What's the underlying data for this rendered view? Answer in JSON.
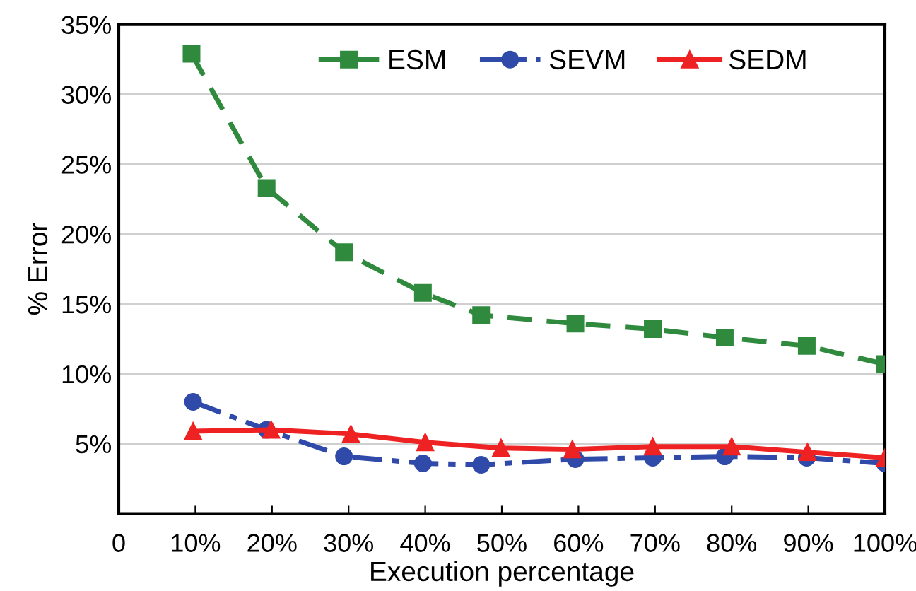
{
  "chart_data": {
    "type": "line",
    "xlabel": "Execution percentage",
    "ylabel": "% Error",
    "xlim": [
      0,
      100
    ],
    "xticks": [
      {
        "value": 0,
        "label": "0"
      },
      {
        "value": 10,
        "label": "10%"
      },
      {
        "value": 20,
        "label": "20%"
      },
      {
        "value": 30,
        "label": "30%"
      },
      {
        "value": 40,
        "label": "40%"
      },
      {
        "value": 50,
        "label": "50%"
      },
      {
        "value": 60,
        "label": "60%"
      },
      {
        "value": 70,
        "label": "70%"
      },
      {
        "value": 80,
        "label": "80%"
      },
      {
        "value": 90,
        "label": "90%"
      },
      {
        "value": 100,
        "label": "100%"
      }
    ],
    "ylim": [
      0,
      35
    ],
    "yticks": [
      {
        "value": 5,
        "label": "5%"
      },
      {
        "value": 10,
        "label": "10%"
      },
      {
        "value": 15,
        "label": "15%"
      },
      {
        "value": 20,
        "label": "20%"
      },
      {
        "value": 25,
        "label": "25%"
      },
      {
        "value": 30,
        "label": "30%"
      },
      {
        "value": 35,
        "label": "35%"
      }
    ],
    "grid": "y",
    "legend": "top",
    "series": [
      {
        "name": "ESM",
        "color": "#2f8a3e",
        "marker": "square",
        "line_style": "dashed",
        "x": [
          9.5,
          19.3,
          29.4,
          39.7,
          47.3,
          59.6,
          69.7,
          79.1,
          89.8,
          100
        ],
        "values": [
          32.9,
          23.3,
          18.7,
          15.8,
          14.2,
          13.6,
          13.2,
          12.6,
          12.0,
          10.7
        ]
      },
      {
        "name": "SEVM",
        "color": "#2f4aa8",
        "marker": "circle",
        "line_style": "dashdot",
        "x": [
          9.7,
          19.3,
          29.4,
          39.7,
          47.3,
          59.6,
          69.7,
          79.1,
          89.8,
          100
        ],
        "values": [
          8.0,
          6.0,
          4.1,
          3.6,
          3.5,
          3.9,
          4.0,
          4.1,
          4.0,
          3.6
        ]
      },
      {
        "name": "SEDM",
        "color": "#ee2222",
        "marker": "triangle",
        "line_style": "solid",
        "x": [
          9.7,
          19.9,
          30.3,
          40.0,
          49.9,
          59.2,
          69.7,
          80.0,
          89.9,
          100
        ],
        "values": [
          5.9,
          6.0,
          5.7,
          5.1,
          4.7,
          4.6,
          4.8,
          4.8,
          4.4,
          4.0
        ]
      }
    ]
  }
}
